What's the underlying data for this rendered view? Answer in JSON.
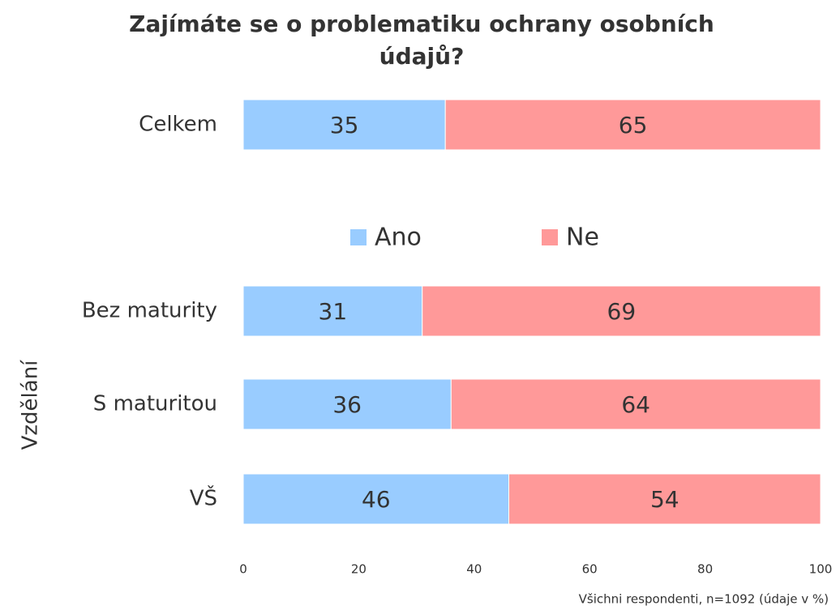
{
  "chart_data": {
    "type": "stacked_bar_horizontal",
    "title": "Zajímáte se o problematiku ochrany osobních údajů?",
    "categories": [
      "Celkem",
      "Bez maturity",
      "S maturitou",
      "VŠ"
    ],
    "group_label": "Vzdělání",
    "series": [
      {
        "name": "Ano",
        "color": "#99ccff",
        "values": [
          35,
          31,
          36,
          46
        ]
      },
      {
        "name": "Ne",
        "color": "#ff9999",
        "values": [
          65,
          69,
          64,
          54
        ]
      }
    ],
    "xlim": [
      0,
      100
    ],
    "xticks": [
      0,
      20,
      40,
      60,
      80,
      100
    ],
    "note": "Všichni respondenti, n=1092 (údaje v %)"
  }
}
